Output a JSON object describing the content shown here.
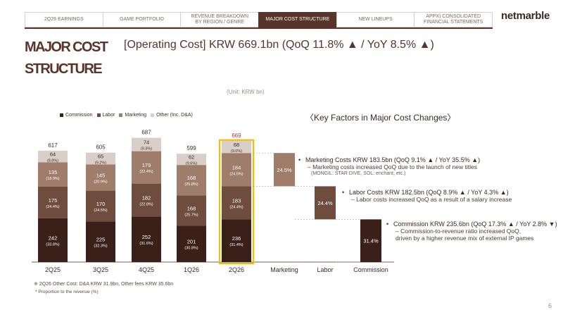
{
  "nav": {
    "tabs": [
      {
        "label": "2Q26  EARNINGS",
        "active": false
      },
      {
        "label": "GAME PORTFOLIO",
        "active": false
      },
      {
        "label": "REVENUE BREAKDOWN\nBY REGION / GENRE",
        "active": false
      },
      {
        "label": "MAJOR COST STRUCTURE",
        "active": true
      },
      {
        "label": "NEW LINEUPS",
        "active": false
      },
      {
        "label": "APPX) CONSOLIDATED\nFINANCIAL STATEMENTS",
        "active": false
      }
    ]
  },
  "logo": "netmarble",
  "page_title": "MAJOR COST\nSTRUCTURE",
  "headline": "[Operating Cost] KRW 669.1bn (QoQ 11.8% ▲  / YoY 8.5% ▲)",
  "unit_note": "(Unit: KRW bn)",
  "key_factors_title": "〈Key Factors in Major Cost Changes〉",
  "colors": {
    "commission": "#3a2019",
    "labor": "#6e4c3e",
    "marketing": "#a07c6b",
    "other": "#d9cfc8",
    "highlight_border": "#f0c000",
    "highlight_total": "#b8323a",
    "accent": "#5a3428"
  },
  "chart_data": {
    "type": "bar",
    "stacked": true,
    "categories": [
      "2Q25",
      "3Q25",
      "4Q25",
      "1Q26",
      "2Q26"
    ],
    "highlight": "2Q26",
    "legend": [
      "Commission",
      "Labor",
      "Marketing",
      "Other (Inc. D&A)"
    ],
    "totals": [
      617,
      605,
      687,
      599,
      669
    ],
    "series": [
      {
        "name": "Commission",
        "values": [
          242,
          225,
          252,
          201,
          236
        ],
        "shares": [
          "(33.8%)",
          "(32.3%)",
          "(31.6%)",
          "(30.8%)",
          "(31.4%)"
        ]
      },
      {
        "name": "Labor",
        "values": [
          175,
          170,
          182,
          168,
          183
        ],
        "shares": [
          "(24.4%)",
          "(24.5%)",
          "(22.8%)",
          "(25.7%)",
          "(24.4%)"
        ]
      },
      {
        "name": "Marketing",
        "values": [
          135,
          145,
          179,
          168,
          184
        ],
        "shares": [
          "(18.9%)",
          "(20.9%)",
          "(22.4%)",
          "(25.8%)",
          "(24.5%)"
        ]
      },
      {
        "name": "Other (Inc. D&A)",
        "values": [
          64,
          65,
          74,
          62,
          68
        ],
        "shares": [
          "(8.8%)",
          "(9.2%)",
          "(9.3%)",
          "(9.6%)",
          "(9.0%)"
        ]
      }
    ],
    "breakdown": {
      "categories": [
        "Marketing",
        "Labor",
        "Commission"
      ],
      "values": [
        184,
        183,
        236
      ],
      "labels": [
        "24.5%",
        "24.4%",
        "31.4%"
      ]
    }
  },
  "annotations": [
    {
      "head": "Marketing Costs KRW 183.5bn (QoQ 9.1% ▲ / YoY 35.5% ▲)",
      "sub": "– Marketing costs increased QoQ due to the launch of new titles",
      "sub2": "(MONGIL: STAR DIVE, SOL: enchant, etc.)"
    },
    {
      "head": "Labor Costs KRW 182.5bn (QoQ 8.9% ▲ / YoY 4.3% ▲)",
      "sub": "– Labor costs increased QoQ as a result of a salary increase",
      "sub2": ""
    },
    {
      "head": "Commission KRW 235.6bn (QoQ 17.3% ▲ / YoY 2.8% ▼)",
      "sub": "– Commission-to-revenue ratio increased QoQ,\n   driven by a higher revenue mix of external IP games",
      "sub2": ""
    }
  ],
  "footnotes": [
    "※ 2Q26 Other Cost: D&A KRW 31.9bn, Other fees KRW 35.6bn",
    "* Proportion to the revenue (%)"
  ],
  "page_number": "6"
}
